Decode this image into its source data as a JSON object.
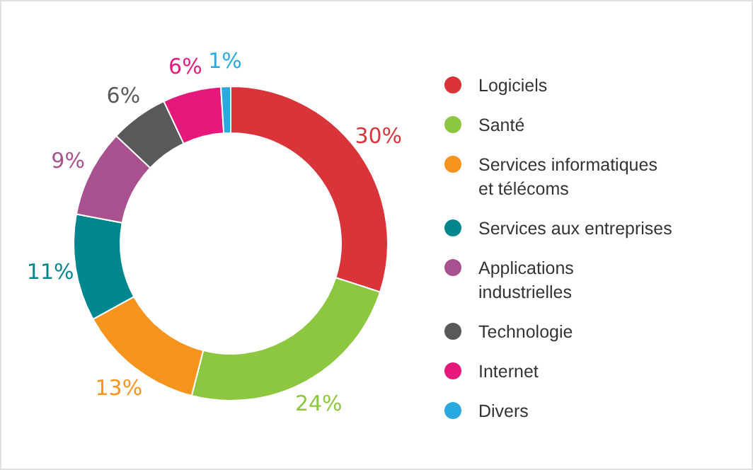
{
  "chart_data": {
    "type": "donut",
    "categories": [
      "Logiciels",
      "Santé",
      "Services informatiques et télécoms",
      "Services aux entreprises",
      "Applications industrielles",
      "Technologie",
      "Internet",
      "Divers"
    ],
    "values": [
      30,
      24,
      13,
      11,
      9,
      6,
      6,
      1
    ],
    "colors": [
      "#d9343a",
      "#8dc63f",
      "#f7941d",
      "#00868f",
      "#a9508f",
      "#58595b",
      "#e5197b",
      "#29a9e0"
    ],
    "value_labels": [
      "30%",
      "24%",
      "13%",
      "11%",
      "9%",
      "6%",
      "6%",
      "1%"
    ],
    "legend": "right"
  }
}
